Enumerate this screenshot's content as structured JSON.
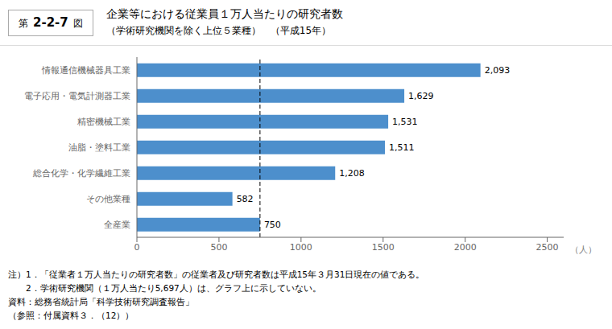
{
  "chart_data": {
    "type": "bar",
    "orientation": "horizontal",
    "title": "企業等における従業員１万人当たりの研究者数",
    "subtitle": "（学術研究機関を除く上位５業種）　（平成15年）",
    "xlabel": "（人）",
    "categories": [
      "情報通信機械器具工業",
      "電子応用・電気計測器工業",
      "精密機械工業",
      "油脂・塗料工業",
      "総合化学・化学繊維工業",
      "その他業種",
      "全産業"
    ],
    "values": [
      2093,
      1629,
      1531,
      1511,
      1208,
      582,
      750
    ],
    "value_labels": [
      "2,093",
      "1,629",
      "1,531",
      "1,511",
      "1,208",
      "582",
      "750"
    ],
    "data_labels": true,
    "color": "#4d8fcc",
    "xlim": [
      0,
      2600
    ],
    "xticks": [
      0,
      500,
      1000,
      1500,
      2000,
      2500
    ],
    "grid": false,
    "reference_lines": [
      {
        "x": 750,
        "line_style": "dashed"
      }
    ],
    "annotations": [
      "第",
      "2-2-7",
      "図",
      "注）1．「従業者１万人当たりの研究者数」の従業者及び研究者数は平成15年３月31日現在の値である。",
      "　　2．学術研究機関（１万人当たり5,697人）は、グラフ上に示していない。",
      "資料：総務省統計局「科学技術研究調査報告」",
      "（参照：付属資料３．（12））"
    ]
  }
}
